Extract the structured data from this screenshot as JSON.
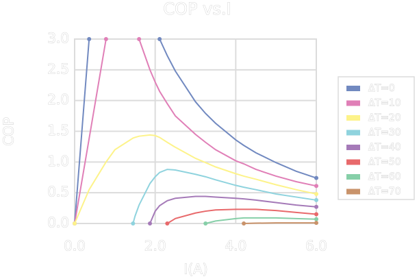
{
  "chart_data": {
    "type": "line",
    "title": "COP vs.I",
    "x_label": "I(A)",
    "y_label": "COP",
    "x": [
      0,
      0.36,
      0.78,
      1.0,
      1.45,
      1.5,
      1.6,
      1.87,
      2.0,
      2.11,
      2.3,
      2.5,
      3.0,
      3.25,
      3.5,
      4.0,
      4.2,
      4.5,
      5.0,
      5.5,
      6.0
    ],
    "series": [
      {
        "name": "ΔT=0",
        "color": "#7189c0",
        "values": [
          0,
          3.0,
          null,
          null,
          null,
          null,
          null,
          null,
          null,
          3.0,
          2.73,
          2.48,
          1.98,
          1.79,
          1.63,
          1.36,
          1.27,
          1.15,
          0.99,
          0.85,
          0.74
        ]
      },
      {
        "name": "ΔT=10",
        "color": "#e07fb7",
        "values": [
          0,
          1.38,
          3.0,
          null,
          null,
          null,
          3.0,
          2.5,
          2.3,
          2.15,
          1.95,
          1.75,
          1.45,
          1.32,
          1.2,
          1.02,
          0.97,
          0.88,
          0.77,
          0.68,
          0.61
        ]
      },
      {
        "name": "ΔT=20",
        "color": "#fdf38a",
        "values": [
          0,
          0.55,
          1.0,
          1.2,
          1.39,
          1.4,
          1.42,
          1.44,
          1.43,
          1.4,
          1.32,
          1.24,
          1.06,
          0.99,
          0.92,
          0.81,
          0.77,
          0.72,
          0.63,
          0.55,
          0.48
        ]
      },
      {
        "name": "ΔT=30",
        "color": "#8fd3de",
        "values": [
          null,
          null,
          null,
          null,
          0,
          0.12,
          0.3,
          0.65,
          0.76,
          0.83,
          0.88,
          0.87,
          0.8,
          0.76,
          0.71,
          0.62,
          0.59,
          0.55,
          0.48,
          0.43,
          0.38
        ]
      },
      {
        "name": "ΔT=40",
        "color": "#a57ab8",
        "values": [
          null,
          null,
          null,
          null,
          null,
          null,
          null,
          0,
          0.2,
          0.29,
          0.37,
          0.41,
          0.44,
          0.44,
          0.43,
          0.41,
          0.4,
          0.38,
          0.34,
          0.3,
          0.27
        ]
      },
      {
        "name": "ΔT=50",
        "color": "#e8696b",
        "values": [
          null,
          null,
          null,
          null,
          null,
          null,
          null,
          null,
          null,
          null,
          0,
          0.08,
          0.17,
          0.2,
          0.22,
          0.23,
          0.23,
          0.23,
          0.21,
          0.18,
          0.15
        ]
      },
      {
        "name": "ΔT=60",
        "color": "#86cfa8",
        "values": [
          null,
          null,
          null,
          null,
          null,
          null,
          null,
          null,
          null,
          null,
          null,
          null,
          null,
          0,
          0.04,
          0.08,
          0.09,
          0.09,
          0.09,
          0.08,
          0.07
        ]
      },
      {
        "name": "ΔT=70",
        "color": "#c9936b",
        "values": [
          null,
          null,
          null,
          null,
          null,
          null,
          null,
          null,
          null,
          null,
          null,
          null,
          null,
          null,
          null,
          null,
          0,
          0.005,
          0.01,
          0.01,
          0.01
        ]
      }
    ],
    "xlim": [
      0,
      6
    ],
    "ylim": [
      0,
      3
    ],
    "xticks": [
      {
        "value": 0,
        "label": "0.0"
      },
      {
        "value": 2,
        "label": "2.0"
      },
      {
        "value": 4,
        "label": "4.0"
      },
      {
        "value": 6,
        "label": "6.0"
      }
    ],
    "yticks": [
      {
        "value": 0,
        "label": "0.0"
      },
      {
        "value": 0.5,
        "label": "0.5"
      },
      {
        "value": 1,
        "label": "1.0"
      },
      {
        "value": 1.5,
        "label": "1.5"
      },
      {
        "value": 2,
        "label": "2.0"
      },
      {
        "value": 2.5,
        "label": "2.5"
      },
      {
        "value": 3,
        "label": "3.0"
      }
    ],
    "grid": true
  }
}
